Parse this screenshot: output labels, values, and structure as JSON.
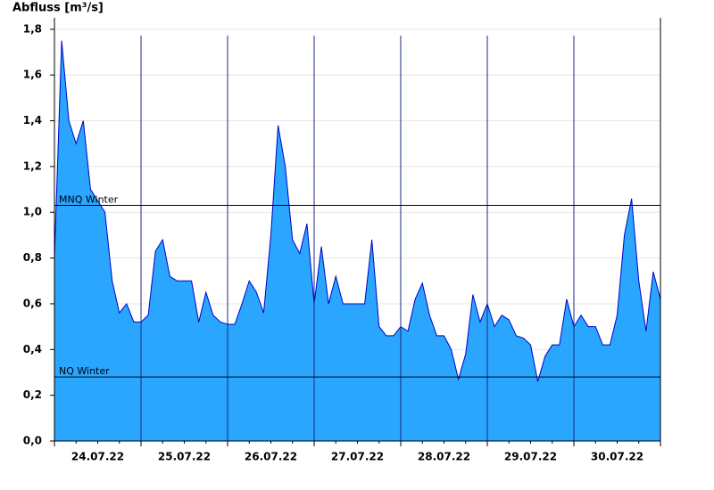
{
  "chart_data": {
    "type": "area",
    "title": "Abfluss [m³/s]",
    "categories": [
      null,
      null,
      null,
      null,
      null,
      null,
      "24.07.22",
      null,
      null,
      null,
      null,
      null,
      null,
      null,
      null,
      null,
      null,
      null,
      "25.07.22",
      null,
      null,
      null,
      null,
      null,
      null,
      null,
      null,
      null,
      null,
      null,
      "26.07.22",
      null,
      null,
      null,
      null,
      null,
      null,
      null,
      null,
      null,
      null,
      null,
      "27.07.22",
      null,
      null,
      null,
      null,
      null,
      null,
      null,
      null,
      null,
      null,
      null,
      "28.07.22",
      null,
      null,
      null,
      null,
      null,
      null,
      null,
      null,
      null,
      null,
      null,
      "29.07.22",
      null,
      null,
      null,
      null,
      null,
      null,
      null,
      null,
      null,
      null,
      null,
      "30.07.22",
      null,
      null,
      null,
      null,
      null,
      null
    ],
    "series": [
      {
        "color": "#2aa6ff",
        "line_color": "#0000c8",
        "values": [
          0.8,
          1.75,
          1.4,
          1.3,
          1.4,
          1.1,
          1.05,
          1.0,
          0.7,
          0.56,
          0.6,
          0.52,
          0.52,
          0.55,
          0.83,
          0.88,
          0.72,
          0.7,
          0.7,
          0.7,
          0.52,
          0.65,
          0.55,
          0.52,
          0.51,
          0.51,
          0.6,
          0.7,
          0.65,
          0.56,
          0.9,
          1.38,
          1.2,
          0.88,
          0.82,
          0.95,
          0.6,
          0.85,
          0.6,
          0.72,
          0.6,
          0.6,
          0.6,
          0.6,
          0.88,
          0.5,
          0.46,
          0.46,
          0.5,
          0.48,
          0.62,
          0.69,
          0.55,
          0.46,
          0.46,
          0.4,
          0.27,
          0.38,
          0.64,
          0.52,
          0.6,
          0.5,
          0.55,
          0.53,
          0.46,
          0.45,
          0.42,
          0.26,
          0.37,
          0.42,
          0.42,
          0.62,
          0.5,
          0.55,
          0.5,
          0.5,
          0.42,
          0.42,
          0.55,
          0.9,
          1.06,
          0.7,
          0.48,
          0.74,
          0.62
        ]
      }
    ],
    "ylim": [
      0,
      1.85
    ],
    "yticks": [
      {
        "value": 0,
        "label": "0,0"
      },
      {
        "value": 0.2,
        "label": "0,2"
      },
      {
        "value": 0.4,
        "label": "0,4"
      },
      {
        "value": 0.6,
        "label": "0,6"
      },
      {
        "value": 0.8,
        "label": "0,8"
      },
      {
        "value": 1.0,
        "label": "1,0"
      },
      {
        "value": 1.2,
        "label": "1,2"
      },
      {
        "value": 1.4,
        "label": "1,4"
      },
      {
        "value": 1.6,
        "label": "1,6"
      },
      {
        "value": 1.8,
        "label": "1,8"
      }
    ],
    "grid": true,
    "reference_lines": [
      {
        "label": "MNQ Winter",
        "value": 1.03
      },
      {
        "label": "NQ Winter",
        "value": 0.28
      }
    ]
  }
}
